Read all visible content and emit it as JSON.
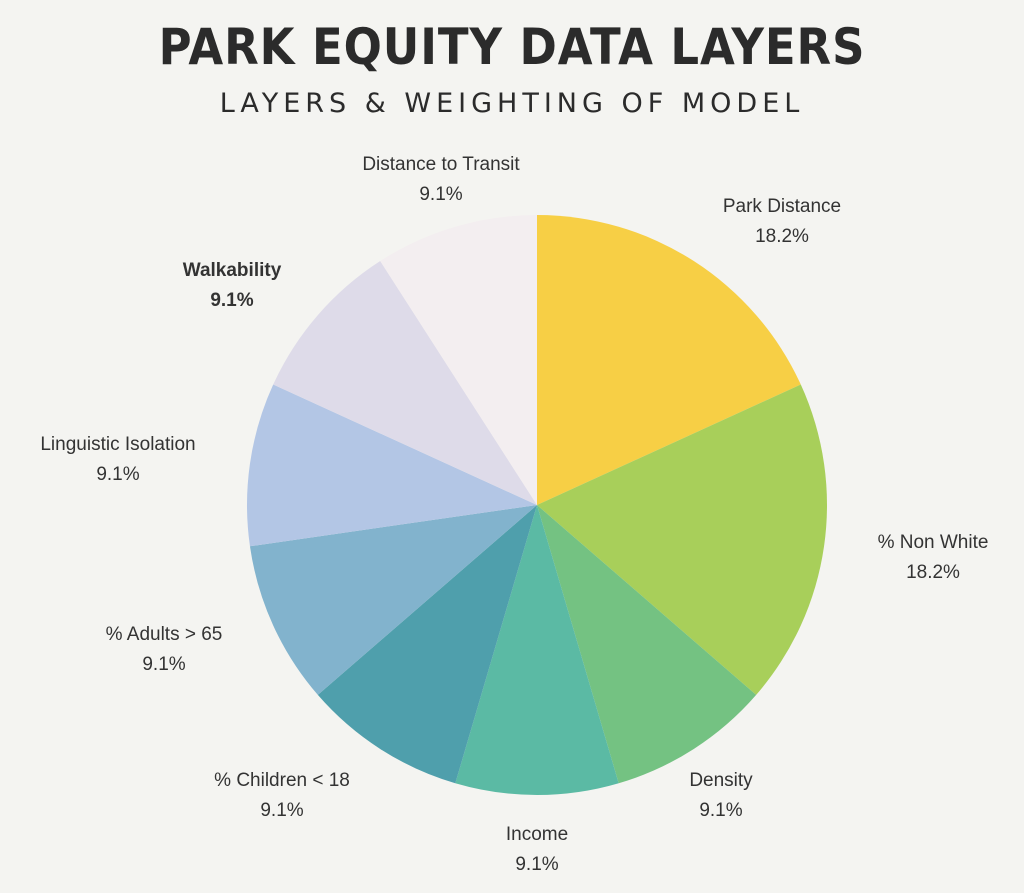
{
  "chart_data": {
    "type": "pie",
    "title": "PARK EQUITY DATA LAYERS",
    "subtitle": "LAYERS & WEIGHTING OF MODEL",
    "slices": [
      {
        "label": "Park Distance",
        "value": 18.2,
        "value_label": "18.2%",
        "color": "#f7cf45"
      },
      {
        "label": "% Non White",
        "value": 18.2,
        "value_label": "18.2%",
        "color": "#a8cf5a"
      },
      {
        "label": "Density",
        "value": 9.1,
        "value_label": "9.1%",
        "color": "#74c282"
      },
      {
        "label": "Income",
        "value": 9.1,
        "value_label": "9.1%",
        "color": "#5bbaa4"
      },
      {
        "label": "% Children < 18",
        "value": 9.1,
        "value_label": "9.1%",
        "color": "#4f9fac"
      },
      {
        "label": "% Adults > 65",
        "value": 9.1,
        "value_label": "9.1%",
        "color": "#82b3cd"
      },
      {
        "label": "Linguistic Isolation",
        "value": 9.1,
        "value_label": "9.1%",
        "color": "#b3c6e5"
      },
      {
        "label": "Walkability",
        "value": 9.1,
        "value_label": "9.1%",
        "color": "#dedbe9"
      },
      {
        "label": "Distance to Transit",
        "value": 9.1,
        "value_label": "9.1%",
        "color": "#f3eef0"
      }
    ],
    "start_angle": "top",
    "direction": "clockwise"
  }
}
